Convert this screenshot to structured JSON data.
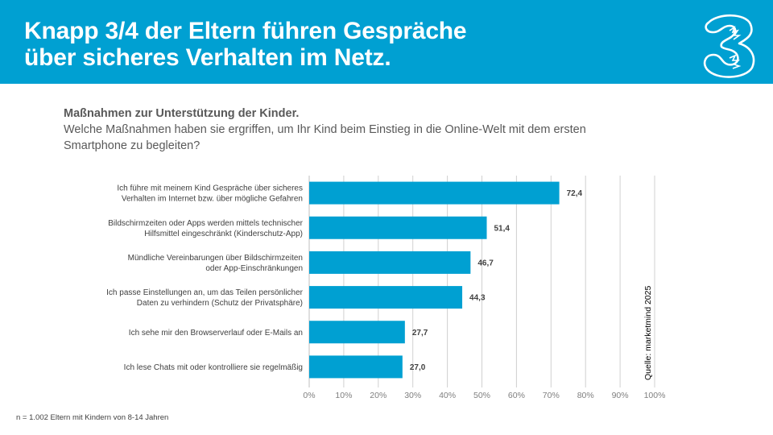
{
  "header": {
    "title_lines": [
      "Knapp 3/4 der Eltern führen Gespräche",
      "über sicheres Verhalten im Netz."
    ],
    "logo_icon": "three-logo-icon",
    "colors": {
      "background": "#00a0d2",
      "text": "#ffffff"
    }
  },
  "subtitle": {
    "heading": "Maßnahmen zur Unterstützung der Kinder.",
    "question_lines": [
      "Welche Maßnahmen haben sie ergriffen, um Ihr Kind beim Einstieg in die Online-Welt mit dem ersten",
      "Smartphone zu begleiten?"
    ]
  },
  "chart_data": {
    "type": "bar",
    "orientation": "horizontal",
    "title": "Maßnahmen zur Unterstützung der Kinder.",
    "xlabel": "",
    "ylabel": "",
    "categories": [
      [
        "Ich führe mit meinem Kind Gespräche über sicheres",
        "Verhalten im Internet bzw. über mögliche Gefahren"
      ],
      [
        "Bildschirmzeiten oder Apps werden mittels technischer",
        "Hilfsmittel eingeschränkt (Kinderschutz-App)"
      ],
      [
        "Mündliche Vereinbarungen über Bildschirmzeiten",
        "oder App-Einschränkungen"
      ],
      [
        "Ich passe Einstellungen an, um das Teilen persönlicher",
        "Daten zu verhindern (Schutz der Privatsphäre)"
      ],
      [
        "Ich sehe mir den Browserverlauf oder E-Mails an"
      ],
      [
        "Ich lese Chats mit oder kontrolliere sie regelmäßig"
      ]
    ],
    "values": [
      72.4,
      51.4,
      46.7,
      44.3,
      27.7,
      27.0
    ],
    "data_labels": [
      "72,4",
      "51,4",
      "46,7",
      "44,3",
      "27,7",
      "27,0"
    ],
    "xlim": [
      0,
      100
    ],
    "x_ticks": [
      0,
      10,
      20,
      30,
      40,
      50,
      60,
      70,
      80,
      90,
      100
    ],
    "x_tick_labels": [
      "0%",
      "10%",
      "20%",
      "30%",
      "40%",
      "50%",
      "60%",
      "70%",
      "80%",
      "90%",
      "100%"
    ],
    "grid": true,
    "legend": "none",
    "bar_color": "#00a0d2",
    "source": "Quelle: marketmind 2025"
  },
  "footnote": "n = 1.002 Eltern mit Kindern von 8-14 Jahren"
}
